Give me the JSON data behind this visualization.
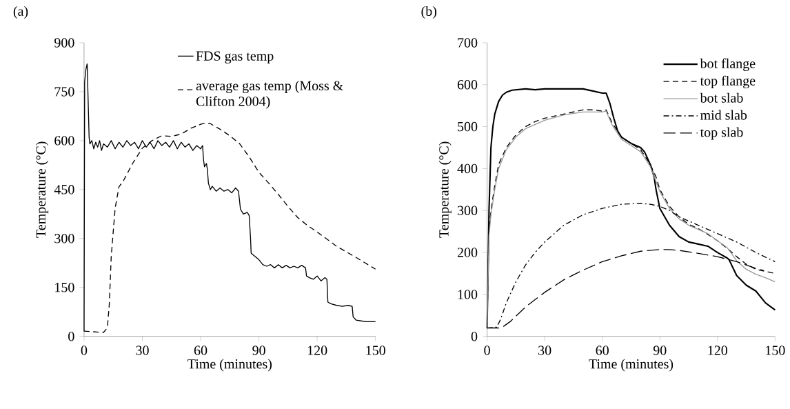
{
  "chart_data": [
    {
      "type": "line",
      "title": "(a)",
      "xlabel": "Time (minutes)",
      "ylabel": "Temperature (°C)",
      "xlim": [
        0,
        150
      ],
      "ylim": [
        0,
        900
      ],
      "xticks": [
        0,
        30,
        60,
        90,
        120,
        150
      ],
      "yticks": [
        0,
        150,
        300,
        450,
        600,
        750,
        900
      ],
      "grid": false,
      "legend": "top right",
      "marker": "none",
      "series": [
        {
          "name": "FDS gas temp",
          "color": "#000000",
          "line_style": "solid",
          "x": [
            0,
            0.3,
            1,
            1.6,
            2.2,
            2.6,
            3,
            4,
            5,
            6,
            7,
            8,
            9,
            10,
            12,
            14,
            16,
            18,
            20,
            22,
            24,
            26,
            28,
            30,
            32,
            34,
            36,
            38,
            40,
            42,
            44,
            46,
            48,
            50,
            52,
            54,
            56,
            58,
            60,
            61,
            61.5,
            62,
            63,
            63.5,
            64,
            65,
            66,
            68,
            70,
            72,
            74,
            76,
            78,
            79.5,
            80.5,
            82,
            84,
            85,
            85.7,
            86,
            87,
            88,
            90,
            92,
            94,
            96,
            98,
            100,
            102,
            104,
            106,
            108,
            110,
            112,
            114,
            114.5,
            116,
            118,
            120,
            122,
            124,
            125,
            125.5,
            127,
            130,
            133,
            136,
            138,
            138.5,
            140,
            142,
            145,
            148,
            150
          ],
          "values": [
            15,
            780,
            820,
            835,
            700,
            610,
            590,
            600,
            575,
            595,
            580,
            600,
            570,
            590,
            580,
            600,
            575,
            595,
            580,
            600,
            585,
            595,
            575,
            600,
            580,
            595,
            575,
            600,
            585,
            595,
            580,
            600,
            575,
            595,
            580,
            590,
            570,
            585,
            575,
            585,
            540,
            520,
            530,
            510,
            470,
            450,
            460,
            445,
            455,
            445,
            450,
            440,
            455,
            445,
            390,
            375,
            380,
            370,
            300,
            255,
            250,
            245,
            235,
            220,
            215,
            220,
            210,
            220,
            210,
            218,
            210,
            215,
            210,
            218,
            210,
            185,
            180,
            175,
            185,
            170,
            180,
            175,
            105,
            100,
            95,
            92,
            95,
            92,
            60,
            50,
            48,
            45,
            45,
            45
          ]
        },
        {
          "name": "average gas temp (Moss & Clifton 2004)",
          "color": "#000000",
          "line_style": "dashed",
          "x": [
            0,
            10,
            12,
            13,
            14,
            16,
            18,
            20,
            25,
            30,
            35,
            40,
            45,
            50,
            55,
            60,
            62,
            65,
            70,
            75,
            80,
            85,
            90,
            95,
            100,
            105,
            110,
            115,
            120,
            130,
            140,
            150
          ],
          "values": [
            16,
            12,
            26,
            99,
            246,
            393,
            459,
            474,
            530,
            577,
            600,
            615,
            613,
            620,
            638,
            650,
            653,
            652,
            635,
            615,
            591,
            550,
            503,
            470,
            435,
            398,
            364,
            340,
            320,
            276,
            242,
            206
          ]
        }
      ]
    },
    {
      "type": "line",
      "title": "(b)",
      "xlabel": "Time (minutes)",
      "ylabel": "Temperature (°C)",
      "xlim": [
        0,
        150
      ],
      "ylim": [
        0,
        700
      ],
      "xticks": [
        0,
        30,
        60,
        90,
        120,
        150
      ],
      "yticks": [
        0,
        100,
        200,
        300,
        400,
        500,
        600,
        700
      ],
      "grid": false,
      "legend": "top right",
      "marker": "none",
      "series": [
        {
          "name": "bot flange",
          "color": "#000000",
          "line_style": "solid",
          "x": [
            0,
            0.5,
            1,
            2,
            3,
            4,
            6,
            8,
            10,
            13,
            20,
            25,
            30,
            40,
            50,
            55,
            60,
            62,
            64,
            66,
            68,
            70,
            75,
            80,
            82,
            85,
            87,
            88,
            90,
            95,
            100,
            105,
            110,
            115,
            120,
            125,
            126,
            130,
            135,
            140,
            145,
            150
          ],
          "values": [
            20,
            150,
            300,
            450,
            500,
            530,
            560,
            575,
            582,
            587,
            590,
            588,
            590,
            590,
            590,
            585,
            580,
            580,
            555,
            520,
            490,
            475,
            460,
            450,
            440,
            410,
            380,
            350,
            305,
            265,
            238,
            225,
            220,
            215,
            200,
            187,
            183,
            145,
            122,
            108,
            80,
            63
          ]
        },
        {
          "name": "top flange",
          "color": "#000000",
          "line_style": "dashed",
          "x": [
            0,
            1,
            2,
            4,
            6,
            10,
            15,
            20,
            25,
            30,
            40,
            50,
            55,
            60,
            62,
            65,
            70,
            75,
            80,
            85,
            88,
            90,
            95,
            100,
            105,
            110,
            115,
            120,
            125,
            130,
            135,
            140,
            145,
            150
          ],
          "values": [
            20,
            250,
            300,
            360,
            410,
            450,
            480,
            500,
            512,
            520,
            530,
            540,
            540,
            537,
            540,
            510,
            475,
            460,
            445,
            410,
            380,
            350,
            310,
            285,
            267,
            257,
            243,
            228,
            210,
            190,
            172,
            160,
            155,
            150
          ]
        },
        {
          "name": "bot slab",
          "color": "#999999",
          "line_style": "solid",
          "x": [
            0,
            1,
            2,
            4,
            6,
            10,
            15,
            20,
            30,
            40,
            50,
            60,
            62,
            65,
            70,
            75,
            80,
            85,
            90,
            95,
            100,
            105,
            110,
            115,
            120,
            125,
            130,
            135,
            140,
            145,
            150
          ],
          "values": [
            20,
            240,
            290,
            350,
            400,
            445,
            475,
            495,
            515,
            528,
            535,
            535,
            537,
            505,
            470,
            455,
            440,
            405,
            345,
            305,
            280,
            265,
            255,
            245,
            228,
            212,
            180,
            160,
            148,
            140,
            130
          ]
        },
        {
          "name": "mid slab",
          "color": "#000000",
          "line_style": "dashdot",
          "x": [
            0,
            5,
            7,
            10,
            15,
            20,
            25,
            30,
            40,
            50,
            60,
            70,
            80,
            85,
            90,
            95,
            100,
            110,
            120,
            130,
            140,
            150
          ],
          "values": [
            20,
            22,
            40,
            80,
            130,
            170,
            200,
            225,
            265,
            290,
            305,
            315,
            317,
            315,
            310,
            300,
            285,
            265,
            245,
            225,
            200,
            178
          ]
        },
        {
          "name": "top slab",
          "color": "#000000",
          "line_style": "longdashed",
          "x": [
            0,
            6,
            8,
            12,
            20,
            30,
            40,
            50,
            60,
            70,
            80,
            90,
            95,
            100,
            110,
            120,
            130,
            140,
            144
          ],
          "values": [
            20,
            20,
            22,
            35,
            70,
            105,
            135,
            158,
            178,
            192,
            203,
            207,
            207,
            205,
            198,
            190,
            178,
            162,
            157
          ]
        }
      ]
    }
  ]
}
